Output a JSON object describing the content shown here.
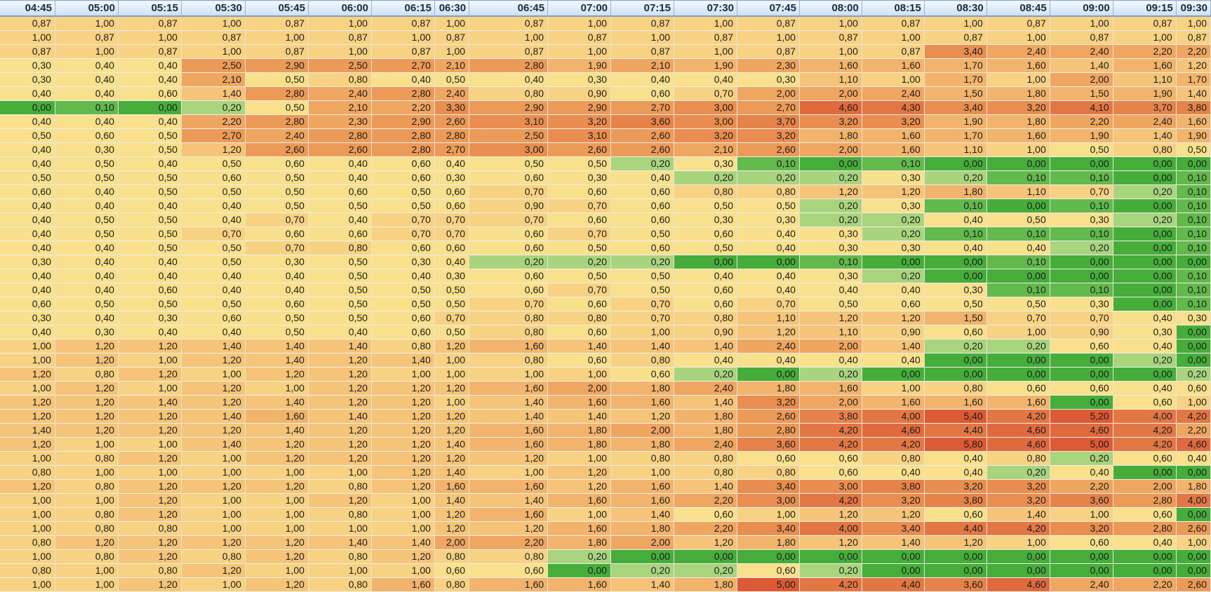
{
  "grid": {
    "columns": [
      "04:45",
      "05:00",
      "05:15",
      "05:30",
      "05:45",
      "06:00",
      "06:15",
      "06:30",
      "06:45",
      "07:00",
      "07:15",
      "07:30",
      "07:45",
      "08:00",
      "08:15",
      "08:30",
      "08:45",
      "09:00",
      "09:15",
      "09:30"
    ],
    "rows": [
      [
        "0,87",
        "1,00",
        "0,87",
        "1,00",
        "0,87",
        "1,00",
        "0,87",
        "1,00",
        "0,87",
        "1,00",
        "0,87",
        "1,00",
        "0,87",
        "1,00",
        "0,87",
        "1,00",
        "0,87",
        "1,00",
        "0,87",
        "1,00"
      ],
      [
        "1,00",
        "0,87",
        "1,00",
        "0,87",
        "1,00",
        "0,87",
        "1,00",
        "0,87",
        "1,00",
        "0,87",
        "1,00",
        "0,87",
        "1,00",
        "0,87",
        "1,00",
        "0,87",
        "1,00",
        "0,87",
        "1,00",
        "0,87"
      ],
      [
        "0,87",
        "1,00",
        "0,87",
        "1,00",
        "0,87",
        "1,00",
        "0,87",
        "1,00",
        "0,87",
        "1,00",
        "0,87",
        "1,00",
        "0,87",
        "1,00",
        "0,87",
        "3,40",
        "2,40",
        "2,40",
        "2,20",
        "2,20"
      ],
      [
        "0,30",
        "0,40",
        "0,40",
        "2,50",
        "2,90",
        "2,50",
        "2,70",
        "2,10",
        "2,80",
        "1,90",
        "2,10",
        "1,90",
        "2,30",
        "1,60",
        "1,60",
        "1,70",
        "1,60",
        "1,40",
        "1,60",
        "1,20"
      ],
      [
        "0,30",
        "0,40",
        "0,40",
        "2,10",
        "0,50",
        "0,80",
        "0,40",
        "0,50",
        "0,40",
        "0,30",
        "0,40",
        "0,40",
        "0,30",
        "1,10",
        "1,00",
        "1,70",
        "1,00",
        "2,00",
        "1,10",
        "1,70"
      ],
      [
        "0,40",
        "0,40",
        "0,60",
        "1,40",
        "2,80",
        "2,40",
        "2,80",
        "2,40",
        "0,80",
        "0,90",
        "0,60",
        "0,70",
        "2,00",
        "2,00",
        "2,40",
        "1,50",
        "1,80",
        "1,50",
        "1,90",
        "1,40"
      ],
      [
        "0,00",
        "0,10",
        "0,00",
        "0,20",
        "0,50",
        "2,10",
        "2,20",
        "3,30",
        "2,90",
        "2,90",
        "2,70",
        "3,00",
        "2,70",
        "4,60",
        "4,30",
        "3,40",
        "3,20",
        "4,10",
        "3,70",
        "3,80"
      ],
      [
        "0,40",
        "0,40",
        "0,40",
        "2,20",
        "2,80",
        "2,30",
        "2,90",
        "2,60",
        "3,10",
        "3,20",
        "3,60",
        "3,00",
        "3,70",
        "3,20",
        "3,20",
        "1,90",
        "1,80",
        "2,20",
        "2,40",
        "1,60"
      ],
      [
        "0,50",
        "0,60",
        "0,50",
        "2,70",
        "2,40",
        "2,80",
        "2,80",
        "2,80",
        "2,50",
        "3,10",
        "2,60",
        "3,20",
        "3,20",
        "1,80",
        "1,60",
        "1,70",
        "1,60",
        "1,90",
        "1,40",
        "1,90"
      ],
      [
        "0,40",
        "0,30",
        "0,50",
        "1,20",
        "2,60",
        "2,60",
        "2,80",
        "2,70",
        "3,00",
        "2,60",
        "2,60",
        "2,10",
        "2,60",
        "2,00",
        "1,60",
        "1,10",
        "1,00",
        "0,50",
        "0,80",
        "0,50"
      ],
      [
        "0,40",
        "0,50",
        "0,40",
        "0,50",
        "0,60",
        "0,40",
        "0,60",
        "0,40",
        "0,50",
        "0,50",
        "0,20",
        "0,30",
        "0,10",
        "0,00",
        "0,10",
        "0,00",
        "0,00",
        "0,00",
        "0,00",
        "0,00"
      ],
      [
        "0,50",
        "0,50",
        "0,50",
        "0,60",
        "0,50",
        "0,40",
        "0,60",
        "0,30",
        "0,60",
        "0,30",
        "0,40",
        "0,20",
        "0,20",
        "0,20",
        "0,30",
        "0,20",
        "0,10",
        "0,10",
        "0,00",
        "0,10"
      ],
      [
        "0,60",
        "0,40",
        "0,50",
        "0,50",
        "0,50",
        "0,60",
        "0,50",
        "0,60",
        "0,70",
        "0,60",
        "0,60",
        "0,80",
        "0,80",
        "1,20",
        "1,20",
        "1,80",
        "1,10",
        "0,70",
        "0,20",
        "0,10"
      ],
      [
        "0,40",
        "0,40",
        "0,40",
        "0,40",
        "0,50",
        "0,50",
        "0,50",
        "0,60",
        "0,90",
        "0,70",
        "0,60",
        "0,50",
        "0,50",
        "0,20",
        "0,30",
        "0,10",
        "0,00",
        "0,10",
        "0,00",
        "0,10"
      ],
      [
        "0,40",
        "0,50",
        "0,50",
        "0,40",
        "0,70",
        "0,40",
        "0,70",
        "0,70",
        "0,70",
        "0,60",
        "0,60",
        "0,30",
        "0,30",
        "0,20",
        "0,20",
        "0,40",
        "0,50",
        "0,30",
        "0,20",
        "0,10"
      ],
      [
        "0,40",
        "0,50",
        "0,50",
        "0,70",
        "0,60",
        "0,60",
        "0,70",
        "0,70",
        "0,60",
        "0,70",
        "0,50",
        "0,60",
        "0,40",
        "0,30",
        "0,20",
        "0,10",
        "0,10",
        "0,10",
        "0,00",
        "0,10"
      ],
      [
        "0,40",
        "0,40",
        "0,50",
        "0,50",
        "0,70",
        "0,80",
        "0,60",
        "0,60",
        "0,60",
        "0,50",
        "0,60",
        "0,50",
        "0,40",
        "0,30",
        "0,30",
        "0,40",
        "0,40",
        "0,20",
        "0,00",
        "0,10"
      ],
      [
        "0,30",
        "0,40",
        "0,40",
        "0,50",
        "0,30",
        "0,50",
        "0,30",
        "0,40",
        "0,20",
        "0,20",
        "0,20",
        "0,00",
        "0,00",
        "0,10",
        "0,00",
        "0,00",
        "0,10",
        "0,00",
        "0,00",
        "0,00"
      ],
      [
        "0,40",
        "0,40",
        "0,40",
        "0,40",
        "0,40",
        "0,50",
        "0,40",
        "0,30",
        "0,60",
        "0,50",
        "0,50",
        "0,40",
        "0,40",
        "0,30",
        "0,20",
        "0,00",
        "0,00",
        "0,00",
        "0,00",
        "0,10"
      ],
      [
        "0,40",
        "0,40",
        "0,60",
        "0,40",
        "0,40",
        "0,50",
        "0,50",
        "0,50",
        "0,60",
        "0,70",
        "0,50",
        "0,60",
        "0,40",
        "0,40",
        "0,40",
        "0,30",
        "0,10",
        "0,10",
        "0,00",
        "0,10"
      ],
      [
        "0,60",
        "0,50",
        "0,50",
        "0,50",
        "0,60",
        "0,50",
        "0,50",
        "0,50",
        "0,70",
        "0,60",
        "0,70",
        "0,60",
        "0,70",
        "0,50",
        "0,60",
        "0,50",
        "0,50",
        "0,30",
        "0,00",
        "0,10"
      ],
      [
        "0,30",
        "0,40",
        "0,30",
        "0,60",
        "0,50",
        "0,50",
        "0,60",
        "0,70",
        "0,80",
        "0,80",
        "0,70",
        "0,80",
        "1,10",
        "1,20",
        "1,20",
        "1,50",
        "0,70",
        "0,70",
        "0,40",
        "0,30"
      ],
      [
        "0,40",
        "0,30",
        "0,40",
        "0,40",
        "0,50",
        "0,40",
        "0,60",
        "0,50",
        "0,80",
        "0,60",
        "1,00",
        "0,90",
        "1,20",
        "1,10",
        "0,90",
        "0,60",
        "1,00",
        "0,90",
        "0,30",
        "0,00"
      ],
      [
        "1,00",
        "1,20",
        "1,20",
        "1,40",
        "1,40",
        "1,40",
        "0,80",
        "1,20",
        "1,60",
        "1,40",
        "1,40",
        "1,40",
        "2,40",
        "2,00",
        "1,40",
        "0,20",
        "0,20",
        "0,60",
        "0,40",
        "0,00"
      ],
      [
        "1,00",
        "1,20",
        "1,00",
        "1,20",
        "1,40",
        "1,20",
        "1,40",
        "1,00",
        "0,80",
        "0,60",
        "0,80",
        "0,40",
        "0,40",
        "0,40",
        "0,40",
        "0,00",
        "0,00",
        "0,00",
        "0,20",
        "0,00"
      ],
      [
        "1,20",
        "0,80",
        "1,20",
        "1,00",
        "1,20",
        "1,20",
        "1,00",
        "1,00",
        "1,00",
        "1,00",
        "0,60",
        "0,20",
        "0,00",
        "0,20",
        "0,00",
        "0,00",
        "0,00",
        "0,00",
        "0,00",
        "0,20"
      ],
      [
        "1,00",
        "1,20",
        "1,00",
        "1,20",
        "1,00",
        "1,20",
        "1,20",
        "1,20",
        "1,60",
        "2,00",
        "1,80",
        "2,40",
        "1,80",
        "1,60",
        "1,00",
        "0,80",
        "0,60",
        "0,60",
        "0,40",
        "0,60"
      ],
      [
        "1,20",
        "1,20",
        "1,40",
        "1,20",
        "1,40",
        "1,20",
        "1,20",
        "1,00",
        "1,40",
        "1,60",
        "1,60",
        "1,40",
        "3,20",
        "2,00",
        "1,60",
        "1,60",
        "1,60",
        "0,00",
        "0,60",
        "1,00"
      ],
      [
        "1,20",
        "1,20",
        "1,20",
        "1,40",
        "1,60",
        "1,40",
        "1,20",
        "1,20",
        "1,40",
        "1,40",
        "1,20",
        "1,80",
        "2,60",
        "3,80",
        "4,00",
        "5,40",
        "4,20",
        "5,20",
        "4,00",
        "4,20"
      ],
      [
        "1,40",
        "1,20",
        "1,20",
        "1,20",
        "1,40",
        "1,20",
        "1,20",
        "1,20",
        "1,60",
        "1,80",
        "2,00",
        "1,80",
        "2,80",
        "4,20",
        "4,60",
        "4,40",
        "4,60",
        "4,60",
        "4,20",
        "2,20"
      ],
      [
        "1,20",
        "1,00",
        "1,00",
        "1,40",
        "1,20",
        "1,20",
        "1,20",
        "1,40",
        "1,60",
        "1,80",
        "1,80",
        "2,40",
        "3,60",
        "4,20",
        "4,20",
        "5,80",
        "4,60",
        "5,00",
        "4,20",
        "4,60"
      ],
      [
        "1,00",
        "0,80",
        "1,20",
        "1,00",
        "1,20",
        "1,20",
        "1,20",
        "1,20",
        "1,20",
        "1,00",
        "0,80",
        "0,80",
        "0,60",
        "0,60",
        "0,80",
        "0,40",
        "0,80",
        "0,20",
        "0,60",
        "0,40"
      ],
      [
        "0,80",
        "1,00",
        "1,00",
        "1,00",
        "1,00",
        "1,00",
        "1,20",
        "1,40",
        "1,00",
        "1,20",
        "1,00",
        "0,80",
        "0,80",
        "0,60",
        "0,40",
        "0,40",
        "0,20",
        "0,40",
        "0,00",
        "0,00"
      ],
      [
        "1,20",
        "0,80",
        "1,20",
        "1,20",
        "1,20",
        "0,80",
        "1,20",
        "1,60",
        "1,60",
        "1,20",
        "1,60",
        "1,40",
        "3,40",
        "3,00",
        "3,80",
        "3,20",
        "3,20",
        "2,20",
        "2,00",
        "1,80"
      ],
      [
        "1,00",
        "1,00",
        "1,20",
        "1,00",
        "1,00",
        "1,20",
        "1,00",
        "1,40",
        "1,40",
        "1,60",
        "1,60",
        "2,20",
        "3,00",
        "4,20",
        "3,20",
        "3,80",
        "3,20",
        "3,60",
        "2,80",
        "4,00"
      ],
      [
        "1,00",
        "0,80",
        "1,20",
        "1,00",
        "1,00",
        "0,80",
        "1,00",
        "1,20",
        "1,60",
        "1,00",
        "1,40",
        "0,60",
        "1,00",
        "1,20",
        "1,20",
        "0,60",
        "1,40",
        "1,00",
        "0,60",
        "0,00"
      ],
      [
        "1,00",
        "0,80",
        "0,80",
        "1,00",
        "1,00",
        "1,00",
        "1,00",
        "1,20",
        "1,20",
        "1,60",
        "1,80",
        "2,20",
        "3,40",
        "4,00",
        "3,40",
        "4,40",
        "4,20",
        "3,20",
        "2,80",
        "2,60"
      ],
      [
        "0,80",
        "1,20",
        "1,20",
        "1,20",
        "1,20",
        "1,40",
        "1,40",
        "2,00",
        "2,20",
        "1,80",
        "2,00",
        "1,20",
        "1,80",
        "1,20",
        "1,40",
        "1,20",
        "1,00",
        "0,60",
        "0,40",
        "1,00"
      ],
      [
        "1,00",
        "0,80",
        "1,20",
        "0,80",
        "1,20",
        "0,80",
        "1,20",
        "0,80",
        "0,80",
        "0,20",
        "0,00",
        "0,00",
        "0,00",
        "0,00",
        "0,00",
        "0,00",
        "0,00",
        "0,00",
        "0,00",
        "0,00"
      ],
      [
        "0,80",
        "1,00",
        "0,80",
        "1,20",
        "1,00",
        "1,00",
        "1,00",
        "0,60",
        "0,60",
        "0,00",
        "0,20",
        "0,20",
        "0,60",
        "0,20",
        "0,00",
        "0,00",
        "0,00",
        "0,00",
        "0,00",
        "0,00"
      ],
      [
        "1,00",
        "1,00",
        "1,20",
        "1,00",
        "1,20",
        "0,80",
        "1,60",
        "0,80",
        "1,60",
        "1,60",
        "1,40",
        "1,80",
        "5,00",
        "4,20",
        "4,40",
        "3,60",
        "4,60",
        "2,40",
        "2,20",
        "2,60"
      ]
    ]
  }
}
